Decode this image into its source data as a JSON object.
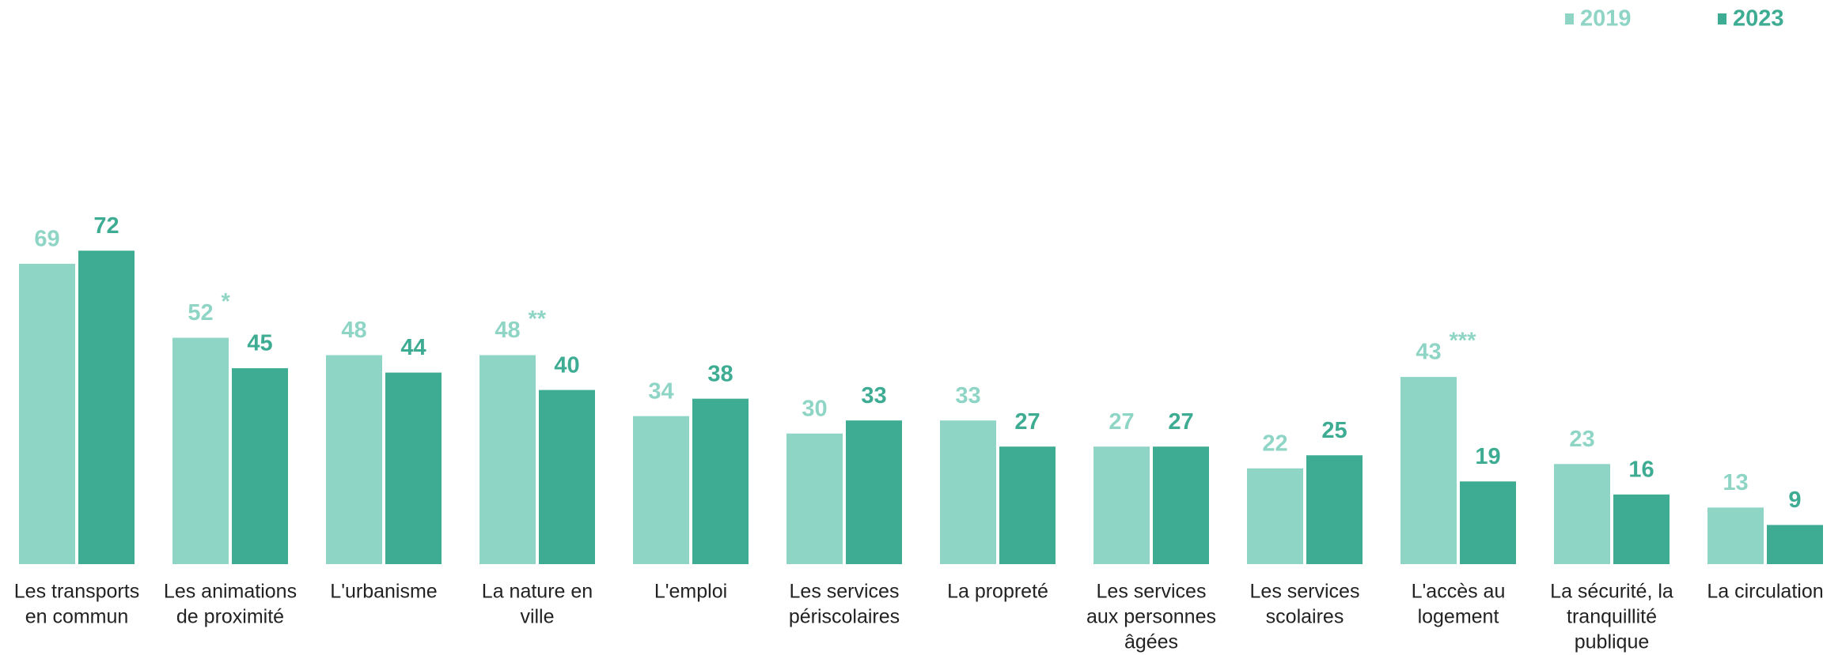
{
  "chart_data": {
    "type": "bar",
    "categories": [
      [
        "Les transports",
        "en commun"
      ],
      [
        "Les animations",
        "de proximité"
      ],
      [
        "L'urbanisme"
      ],
      [
        "La nature en",
        "ville"
      ],
      [
        "L'emploi"
      ],
      [
        "Les services",
        "périscolaires"
      ],
      [
        "La propreté"
      ],
      [
        "Les services",
        "aux personnes",
        "âgées"
      ],
      [
        "Les services",
        "scolaires"
      ],
      [
        "L'accès au",
        "logement"
      ],
      [
        "La sécurité, la",
        "tranquillité",
        "publique"
      ],
      [
        "La circulation"
      ]
    ],
    "series": [
      {
        "name": "2019",
        "color": "#8fd5c6",
        "values": [
          69,
          52,
          48,
          48,
          34,
          30,
          33,
          27,
          22,
          43,
          23,
          13
        ],
        "markers": [
          null,
          "*",
          null,
          "**",
          null,
          null,
          null,
          null,
          null,
          "***",
          null,
          null
        ]
      },
      {
        "name": "2023",
        "color": "#3dac93",
        "values": [
          72,
          45,
          44,
          40,
          38,
          33,
          27,
          27,
          25,
          19,
          16,
          9
        ]
      }
    ],
    "ylim": [
      0,
      100
    ],
    "grid": false,
    "legend": "top-right"
  }
}
